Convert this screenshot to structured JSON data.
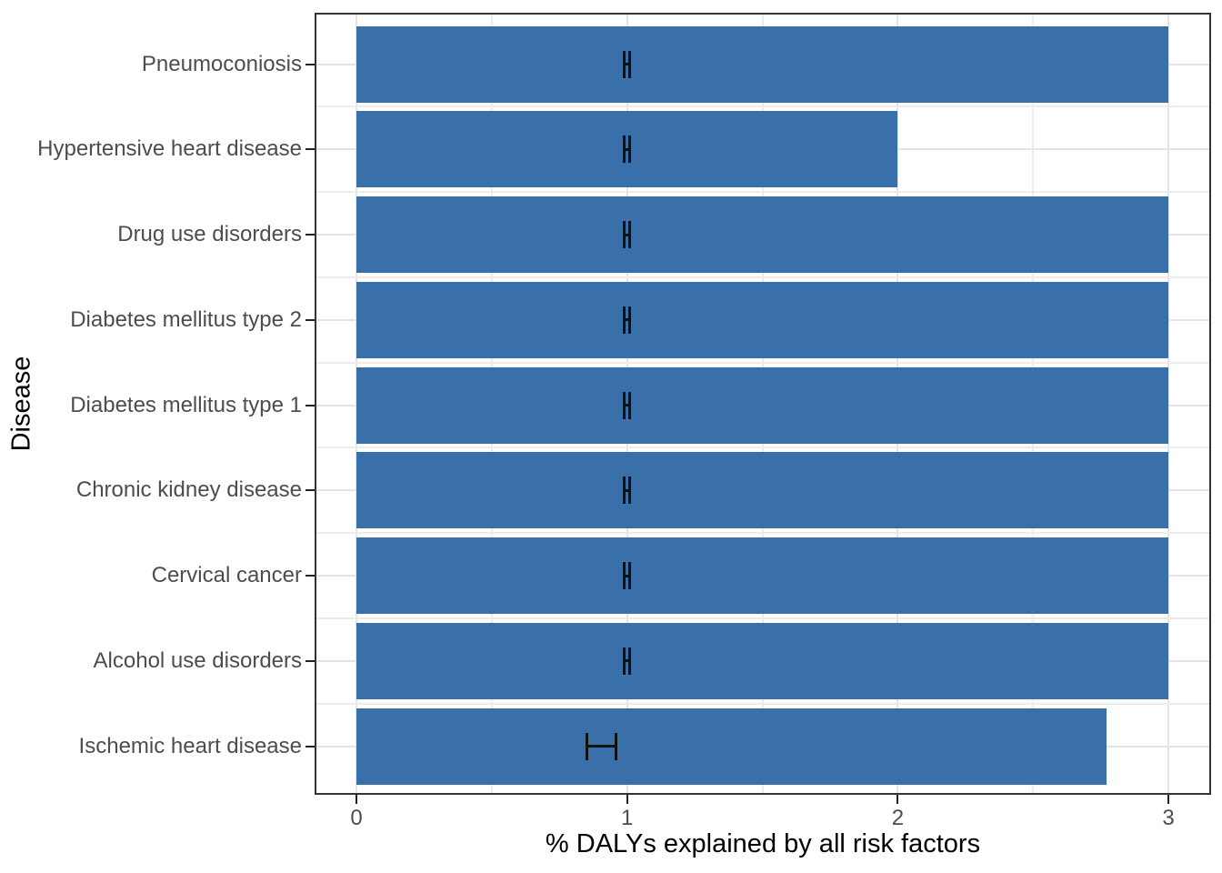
{
  "figure": {
    "background": "#FFFFFF"
  },
  "chart_data": {
    "type": "bar",
    "orientation": "horizontal",
    "title": "",
    "xlabel": "% DALYs explained by all risk factors",
    "ylabel": "Disease",
    "xlim": [
      -0.15,
      3.15
    ],
    "grid": true,
    "legend": false,
    "x_ticks": [
      "0",
      "1",
      "2",
      "3"
    ],
    "x_tick_values": [
      0,
      1,
      2,
      3
    ],
    "x_minor_gridlines": [
      0.5,
      1.5,
      2.5
    ],
    "bars": [
      {
        "category": "Pneumoconiosis",
        "value": 3.0,
        "error": {
          "low": 0.99,
          "center": 1.0,
          "high": 1.01
        }
      },
      {
        "category": "Hypertensive heart disease",
        "value": 2.0,
        "error": {
          "low": 0.99,
          "center": 1.0,
          "high": 1.01
        }
      },
      {
        "category": "Drug use disorders",
        "value": 3.0,
        "error": {
          "low": 0.99,
          "center": 1.0,
          "high": 1.01
        }
      },
      {
        "category": "Diabetes mellitus type 2",
        "value": 3.0,
        "error": {
          "low": 0.99,
          "center": 1.0,
          "high": 1.01
        }
      },
      {
        "category": "Diabetes mellitus type 1",
        "value": 3.0,
        "error": {
          "low": 0.99,
          "center": 1.0,
          "high": 1.01
        }
      },
      {
        "category": "Chronic kidney disease",
        "value": 3.0,
        "error": {
          "low": 0.99,
          "center": 1.0,
          "high": 1.01
        }
      },
      {
        "category": "Cervical cancer",
        "value": 3.0,
        "error": {
          "low": 0.99,
          "center": 1.0,
          "high": 1.01
        }
      },
      {
        "category": "Alcohol use disorders",
        "value": 3.0,
        "error": {
          "low": 0.99,
          "center": 1.0,
          "high": 1.01
        }
      },
      {
        "category": "Ischemic heart disease",
        "value": 2.77,
        "error": {
          "low": 0.85,
          "center": 0.9,
          "high": 0.96
        }
      }
    ],
    "colors": {
      "bar_fill": "#3A70AA",
      "error_bar": "#111111",
      "grid_major": "#E4E4E4",
      "grid_minor": "#ECECEC",
      "panel_border": "#333333",
      "tick_mark": "#222222",
      "tick_label": "#4D4D4D",
      "axis_title": "#000000",
      "panel_background": "#FFFFFF"
    }
  }
}
